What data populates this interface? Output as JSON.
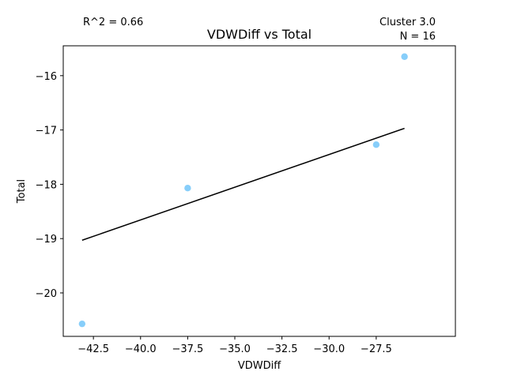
{
  "chart_data": {
    "type": "scatter",
    "title": "VDWDiff vs Total",
    "xlabel": "VDWDiff",
    "ylabel": "Total",
    "annotations": {
      "r2": "R^2 = 0.66",
      "cluster": "Cluster 3.0",
      "n": "N = 16"
    },
    "xlim": [
      -44.1,
      -23.3
    ],
    "ylim": [
      -20.8,
      -15.45
    ],
    "xticks": [
      -42.5,
      -40.0,
      -37.5,
      -35.0,
      -32.5,
      -30.0,
      -27.5
    ],
    "xtick_labels": [
      "−42.5",
      "−40.0",
      "−37.5",
      "−35.0",
      "−32.5",
      "−30.0",
      "−27.5"
    ],
    "yticks": [
      -20,
      -19,
      -18,
      -17,
      -16
    ],
    "ytick_labels": [
      "−20",
      "−19",
      "−18",
      "−17",
      "−16"
    ],
    "grid": false,
    "legend": "none",
    "series": [
      {
        "points": [
          {
            "x": -43.1,
            "y": -20.57
          },
          {
            "x": -37.5,
            "y": -18.07
          },
          {
            "x": -27.5,
            "y": -17.27
          },
          {
            "x": -26.0,
            "y": -15.65
          }
        ],
        "color": "#87cefa"
      }
    ],
    "fit_line": {
      "x": [
        -43.1,
        -26.0
      ],
      "y": [
        -19.03,
        -16.97
      ],
      "color": "#000000"
    }
  }
}
